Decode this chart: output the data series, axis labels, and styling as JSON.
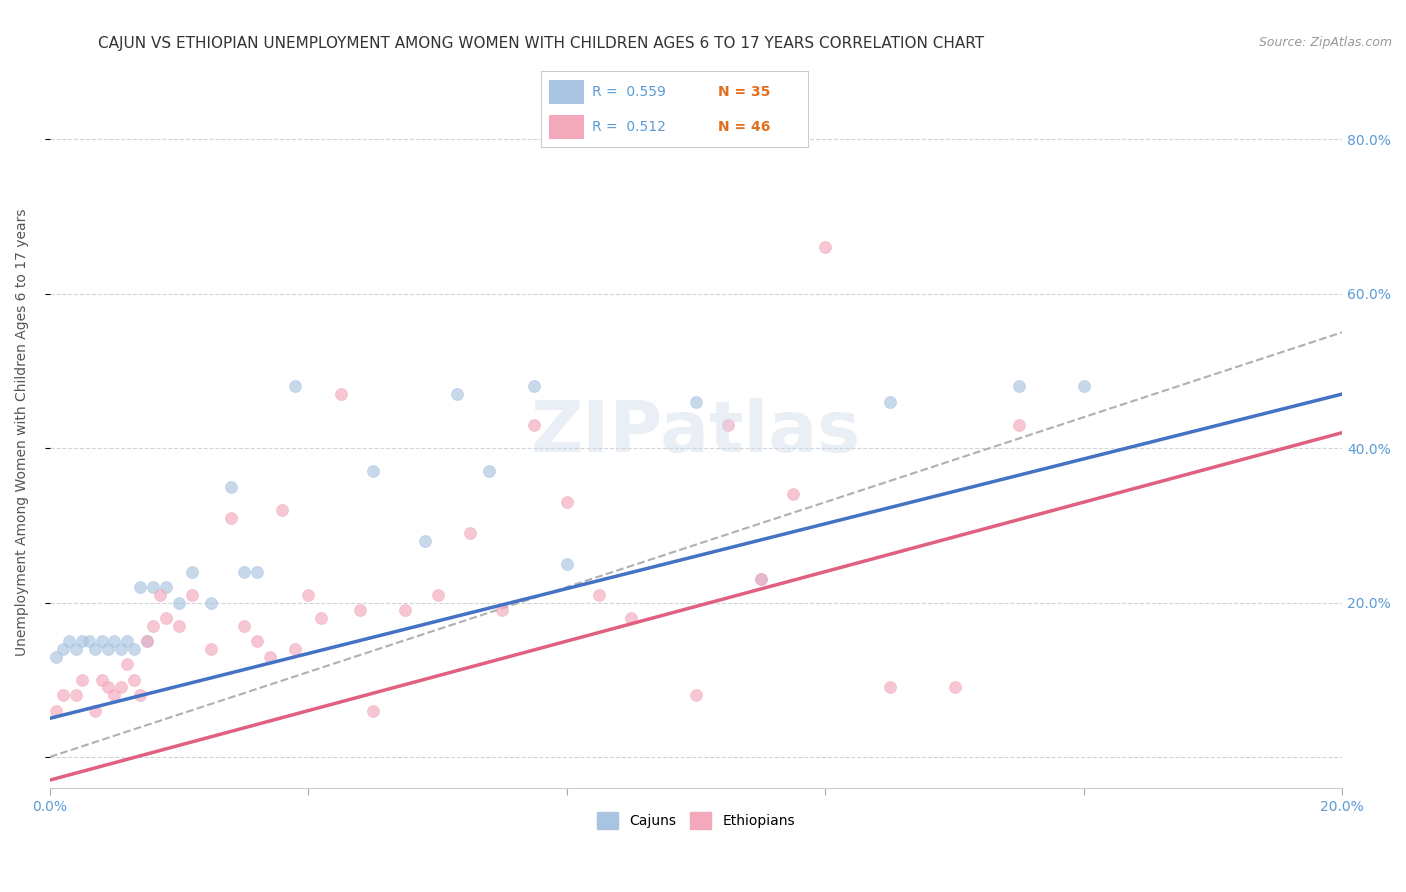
{
  "title": "CAJUN VS ETHIOPIAN UNEMPLOYMENT AMONG WOMEN WITH CHILDREN AGES 6 TO 17 YEARS CORRELATION CHART",
  "source": "Source: ZipAtlas.com",
  "ylabel": "Unemployment Among Women with Children Ages 6 to 17 years",
  "xlim": [
    0.0,
    0.2
  ],
  "ylim": [
    -0.04,
    0.88
  ],
  "xticks": [
    0.0,
    0.04,
    0.08,
    0.12,
    0.16,
    0.2
  ],
  "xtick_labels": [
    "0.0%",
    "",
    "",
    "",
    "",
    "20.0%"
  ],
  "yticks": [
    0.0,
    0.2,
    0.4,
    0.6,
    0.8
  ],
  "ytick_labels": [
    "",
    "20.0%",
    "40.0%",
    "60.0%",
    "80.0%"
  ],
  "legend_r1": "0.559",
  "legend_n1": "35",
  "legend_r2": "0.512",
  "legend_n2": "46",
  "cajun_color": "#a8c4e0",
  "ethiopian_color": "#f4a8bc",
  "cajun_line_color": "#4472c4",
  "ethiopian_line_color": "#e06080",
  "ref_line_color": "#b0b0b0",
  "background_color": "#ffffff",
  "grid_color": "#d0d0d0",
  "title_color": "#333333",
  "watermark_color": "#c8d8e8",
  "tick_color": "#5b9bd5",
  "cajuns_x": [
    0.001,
    0.002,
    0.003,
    0.004,
    0.005,
    0.006,
    0.007,
    0.008,
    0.009,
    0.01,
    0.011,
    0.012,
    0.013,
    0.014,
    0.015,
    0.016,
    0.018,
    0.02,
    0.022,
    0.025,
    0.028,
    0.03,
    0.032,
    0.038,
    0.05,
    0.058,
    0.063,
    0.068,
    0.075,
    0.08,
    0.1,
    0.11,
    0.13,
    0.15,
    0.16
  ],
  "cajuns_y": [
    0.13,
    0.14,
    0.15,
    0.14,
    0.15,
    0.15,
    0.14,
    0.15,
    0.14,
    0.15,
    0.14,
    0.15,
    0.14,
    0.22,
    0.15,
    0.22,
    0.22,
    0.2,
    0.24,
    0.2,
    0.35,
    0.24,
    0.24,
    0.48,
    0.37,
    0.28,
    0.47,
    0.37,
    0.48,
    0.25,
    0.46,
    0.23,
    0.46,
    0.48,
    0.48
  ],
  "ethiopians_x": [
    0.001,
    0.002,
    0.004,
    0.005,
    0.007,
    0.008,
    0.009,
    0.01,
    0.011,
    0.012,
    0.013,
    0.014,
    0.015,
    0.016,
    0.017,
    0.018,
    0.02,
    0.022,
    0.025,
    0.028,
    0.03,
    0.032,
    0.034,
    0.036,
    0.038,
    0.04,
    0.042,
    0.045,
    0.048,
    0.05,
    0.055,
    0.06,
    0.065,
    0.07,
    0.075,
    0.08,
    0.085,
    0.09,
    0.1,
    0.105,
    0.11,
    0.115,
    0.12,
    0.13,
    0.14,
    0.15
  ],
  "ethiopians_y": [
    0.06,
    0.08,
    0.08,
    0.1,
    0.06,
    0.1,
    0.09,
    0.08,
    0.09,
    0.12,
    0.1,
    0.08,
    0.15,
    0.17,
    0.21,
    0.18,
    0.17,
    0.21,
    0.14,
    0.31,
    0.17,
    0.15,
    0.13,
    0.32,
    0.14,
    0.21,
    0.18,
    0.47,
    0.19,
    0.06,
    0.19,
    0.21,
    0.29,
    0.19,
    0.43,
    0.33,
    0.21,
    0.18,
    0.08,
    0.43,
    0.23,
    0.34,
    0.66,
    0.09,
    0.09,
    0.43
  ],
  "cajun_regline_x": [
    0.0,
    0.2
  ],
  "cajun_regline_y": [
    0.05,
    0.47
  ],
  "ethiopian_regline_x": [
    0.0,
    0.2
  ],
  "ethiopian_regline_y": [
    -0.03,
    0.42
  ],
  "ref_line_x": [
    0.0,
    0.2
  ],
  "ref_line_y": [
    0.0,
    0.55
  ],
  "marker_size": 75,
  "marker_alpha": 0.65,
  "title_fontsize": 11,
  "axis_fontsize": 10,
  "tick_fontsize": 10
}
